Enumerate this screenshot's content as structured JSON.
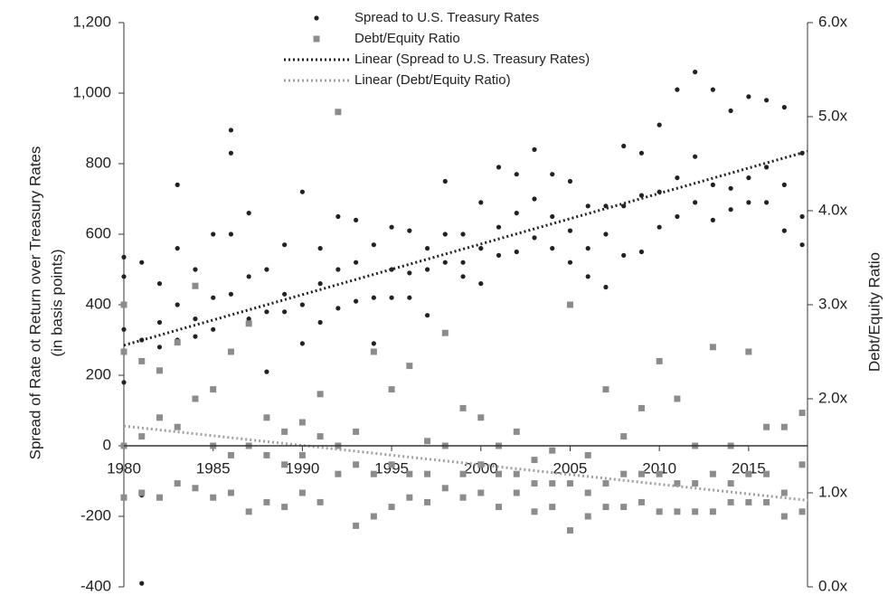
{
  "chart_data": {
    "type": "scatter",
    "y_label": [
      "Spread of Rate ot Return over Treasury Rates",
      "(in basis points)"
    ],
    "y2_label": "Debt/Equity Ratio",
    "xlim": [
      1980,
      2018.3
    ],
    "xticks": [
      1980,
      1985,
      1990,
      1995,
      2000,
      2005,
      2010,
      2015
    ],
    "ylim": [
      -400,
      1200
    ],
    "yticks": [
      {
        "value": -400,
        "label": "-400"
      },
      {
        "value": -200,
        "label": "-200"
      },
      0,
      200,
      400,
      600,
      800,
      {
        "value": 1000,
        "label": "1,000"
      },
      {
        "value": 1200,
        "label": "1,200"
      }
    ],
    "y2lim": [
      0,
      6
    ],
    "y2ticks": [
      {
        "value": 0,
        "label": "0.0x"
      },
      {
        "value": 1,
        "label": "1.0x"
      },
      {
        "value": 2,
        "label": "2.0x"
      },
      {
        "value": 3,
        "label": "3.0x"
      },
      {
        "value": 4,
        "label": "4.0x"
      },
      {
        "value": 5,
        "label": "5.0x"
      },
      {
        "value": 6,
        "label": "6.0x"
      }
    ],
    "grid": false,
    "series": [
      {
        "name": "Spread to U.S. Treasury Rates",
        "color": "#222222",
        "marker": "circle",
        "x": [
          1980,
          1980,
          1980,
          1980,
          1981,
          1981,
          1981,
          1981,
          1982,
          1982,
          1982,
          1983,
          1983,
          1983,
          1983,
          1984,
          1984,
          1984,
          1985,
          1985,
          1985,
          1986,
          1986,
          1986,
          1986,
          1987,
          1987,
          1987,
          1988,
          1988,
          1988,
          1989,
          1989,
          1989,
          1990,
          1990,
          1990,
          1991,
          1991,
          1991,
          1992,
          1992,
          1992,
          1993,
          1993,
          1993,
          1994,
          1994,
          1994,
          1995,
          1995,
          1995,
          1996,
          1996,
          1996,
          1997,
          1997,
          1997,
          1998,
          1998,
          1998,
          1999,
          1999,
          1999,
          2000,
          2000,
          2000,
          2001,
          2001,
          2001,
          2002,
          2002,
          2002,
          2003,
          2003,
          2003,
          2004,
          2004,
          2004,
          2005,
          2005,
          2005,
          2006,
          2006,
          2006,
          2007,
          2007,
          2007,
          2008,
          2008,
          2008,
          2009,
          2009,
          2009,
          2010,
          2010,
          2010,
          2011,
          2011,
          2011,
          2012,
          2012,
          2012,
          2013,
          2013,
          2013,
          2014,
          2014,
          2014,
          2015,
          2015,
          2015,
          2016,
          2016,
          2016,
          2017,
          2017,
          2017,
          2018,
          2018,
          2018
        ],
        "values": [
          180,
          330,
          480,
          535,
          -390,
          -140,
          300,
          520,
          280,
          350,
          460,
          300,
          400,
          560,
          740,
          310,
          360,
          500,
          330,
          420,
          600,
          430,
          600,
          830,
          895,
          360,
          480,
          660,
          210,
          380,
          500,
          380,
          430,
          570,
          290,
          400,
          720,
          350,
          460,
          560,
          390,
          500,
          650,
          410,
          520,
          640,
          290,
          420,
          570,
          420,
          500,
          620,
          420,
          490,
          610,
          370,
          500,
          560,
          520,
          600,
          750,
          480,
          520,
          600,
          460,
          560,
          690,
          540,
          620,
          790,
          550,
          660,
          770,
          590,
          700,
          840,
          560,
          650,
          770,
          520,
          610,
          750,
          480,
          560,
          680,
          450,
          600,
          680,
          540,
          680,
          850,
          550,
          710,
          830,
          620,
          720,
          910,
          650,
          760,
          1010,
          690,
          820,
          1060,
          640,
          740,
          1010,
          670,
          730,
          950,
          690,
          760,
          990,
          690,
          790,
          980,
          610,
          740,
          960,
          570,
          650,
          830
        ]
      },
      {
        "name": "Debt/Equity Ratio",
        "color": "#8c8c8c",
        "marker": "square",
        "axis": "y2",
        "x": [
          1980,
          1980,
          1980,
          1980,
          1981,
          1981,
          1981,
          1982,
          1982,
          1982,
          1983,
          1983,
          1983,
          1984,
          1984,
          1984,
          1985,
          1985,
          1985,
          1986,
          1986,
          1986,
          1987,
          1987,
          1987,
          1988,
          1988,
          1988,
          1989,
          1989,
          1989,
          1990,
          1990,
          1990,
          1991,
          1991,
          1991,
          1992,
          1992,
          1992,
          1993,
          1993,
          1993,
          1994,
          1994,
          1994,
          1995,
          1995,
          1995,
          1996,
          1996,
          1996,
          1997,
          1997,
          1997,
          1998,
          1998,
          1998,
          1999,
          1999,
          1999,
          2000,
          2000,
          2000,
          2001,
          2001,
          2001,
          2002,
          2002,
          2002,
          2003,
          2003,
          2003,
          2004,
          2004,
          2004,
          2005,
          2005,
          2005,
          2006,
          2006,
          2006,
          2007,
          2007,
          2007,
          2008,
          2008,
          2008,
          2009,
          2009,
          2009,
          2010,
          2010,
          2010,
          2011,
          2011,
          2011,
          2012,
          2012,
          2012,
          2013,
          2013,
          2013,
          2014,
          2014,
          2014,
          2015,
          2015,
          2015,
          2016,
          2016,
          2016,
          2017,
          2017,
          2017,
          2018,
          2018,
          2018
        ],
        "values": [
          0.95,
          1.5,
          2.5,
          3.0,
          1.0,
          1.6,
          2.4,
          0.95,
          1.8,
          2.3,
          1.1,
          1.7,
          2.6,
          1.05,
          2.0,
          3.2,
          0.95,
          1.5,
          2.1,
          1.0,
          1.4,
          2.5,
          0.8,
          1.5,
          2.8,
          0.9,
          1.4,
          1.8,
          0.85,
          1.3,
          1.65,
          1.0,
          1.4,
          1.75,
          0.9,
          1.6,
          2.05,
          1.2,
          1.5,
          5.05,
          0.65,
          1.3,
          1.65,
          0.75,
          1.2,
          2.5,
          0.85,
          1.3,
          2.1,
          0.95,
          1.2,
          2.35,
          0.9,
          1.2,
          1.55,
          1.05,
          1.5,
          2.7,
          0.95,
          1.2,
          1.9,
          1.0,
          1.3,
          1.8,
          0.85,
          1.2,
          1.5,
          1.0,
          1.2,
          1.65,
          0.8,
          1.1,
          1.35,
          0.85,
          1.1,
          1.45,
          0.6,
          1.1,
          3.0,
          0.75,
          1.0,
          1.4,
          0.85,
          1.1,
          2.1,
          0.85,
          1.2,
          1.6,
          0.9,
          1.2,
          1.9,
          0.8,
          1.2,
          2.4,
          0.8,
          1.1,
          2.0,
          0.8,
          1.1,
          1.5,
          0.8,
          1.2,
          2.55,
          0.9,
          1.1,
          1.5,
          0.9,
          1.2,
          2.5,
          0.9,
          1.2,
          1.7,
          0.75,
          1.0,
          1.7,
          0.8,
          1.3,
          1.85
        ]
      },
      {
        "name": "Linear (Spread to U.S. Treasury Rates)",
        "color": "#222222",
        "marker": "dotted-line",
        "x": [
          1980,
          2018.3
        ],
        "values": [
          285,
          835
        ]
      },
      {
        "name": "Linear (Debt/Equity Ratio)",
        "color": "#a0a0a0",
        "marker": "dotted-line",
        "axis": "y2",
        "x": [
          1980,
          2018.3
        ],
        "values": [
          1.71,
          0.92
        ]
      }
    ]
  }
}
